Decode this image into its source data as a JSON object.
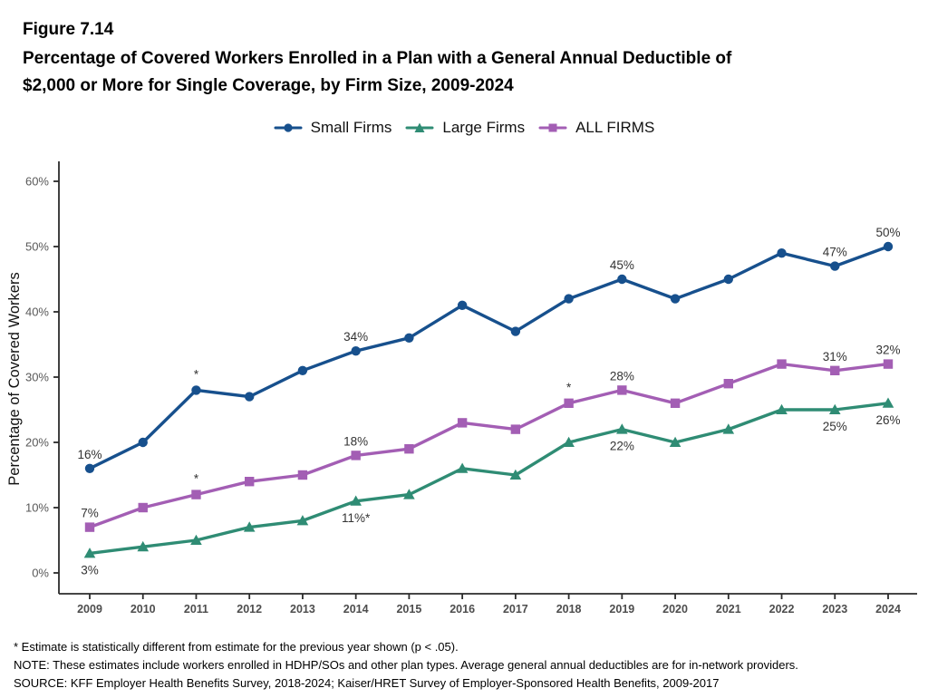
{
  "header": {
    "figure_label": "Figure 7.14",
    "title_line_1": "Percentage of Covered Workers Enrolled in a Plan with a General Annual Deductible of",
    "title_line_2": "$2,000 or More for Single Coverage, by Firm Size, 2009-2024"
  },
  "footer": {
    "asterisk_note": "* Estimate is statistically different from estimate for the previous year shown (p < .05).",
    "note": "NOTE: These estimates include workers enrolled in HDHP/SOs and other plan types. Average general annual deductibles are for in-network providers.",
    "source": "SOURCE: KFF Employer Health Benefits Survey, 2018-2024; Kaiser/HRET Survey of Employer-Sponsored Health Benefits, 2009-2017"
  },
  "chart_data": {
    "type": "line",
    "title": "Percentage of Covered Workers Enrolled in a Plan with a General Annual Deductible of $2,000 or More for Single Coverage, by Firm Size, 2009-2024",
    "xlabel": "",
    "ylabel": "Percentage of Covered Workers",
    "ylim": [
      0,
      60
    ],
    "ytick_labels": [
      "0%",
      "10%",
      "20%",
      "30%",
      "40%",
      "50%",
      "60%"
    ],
    "ytick_values": [
      0,
      10,
      20,
      30,
      40,
      50,
      60
    ],
    "grid": false,
    "legend_position": "top",
    "categories": [
      "2009",
      "2010",
      "2011",
      "2012",
      "2013",
      "2014",
      "2015",
      "2016",
      "2017",
      "2018",
      "2019",
      "2020",
      "2021",
      "2022",
      "2023",
      "2024"
    ],
    "series": [
      {
        "name": "Small Firms",
        "marker": "circle",
        "color": "#17508D",
        "values": [
          16,
          20,
          28,
          27,
          31,
          34,
          36,
          41,
          37,
          42,
          45,
          42,
          45,
          49,
          47,
          50
        ],
        "point_labels": {
          "2009": "16%",
          "2014": "34%",
          "2019": "45%",
          "2023": "47%",
          "2024": "50%"
        },
        "label_placement": "above",
        "asterisk_years": [
          "2011"
        ]
      },
      {
        "name": "Large Firms",
        "marker": "triangle",
        "color": "#2F8C74",
        "values": [
          3,
          4,
          5,
          7,
          8,
          11,
          12,
          16,
          15,
          20,
          22,
          20,
          22,
          25,
          25,
          26
        ],
        "point_labels": {
          "2009": "3%",
          "2014": "11%*",
          "2019": "22%",
          "2023": "25%",
          "2024": "26%"
        },
        "label_placement": "below",
        "asterisk_years": []
      },
      {
        "name": "ALL FIRMS",
        "marker": "square",
        "color": "#A35EB4",
        "values": [
          7,
          10,
          12,
          14,
          15,
          18,
          19,
          23,
          22,
          26,
          28,
          26,
          29,
          32,
          31,
          32
        ],
        "point_labels": {
          "2009": "7%",
          "2014": "18%",
          "2019": "28%",
          "2023": "31%",
          "2024": "32%"
        },
        "label_placement": "above",
        "asterisk_years": [
          "2011",
          "2018"
        ]
      }
    ]
  }
}
